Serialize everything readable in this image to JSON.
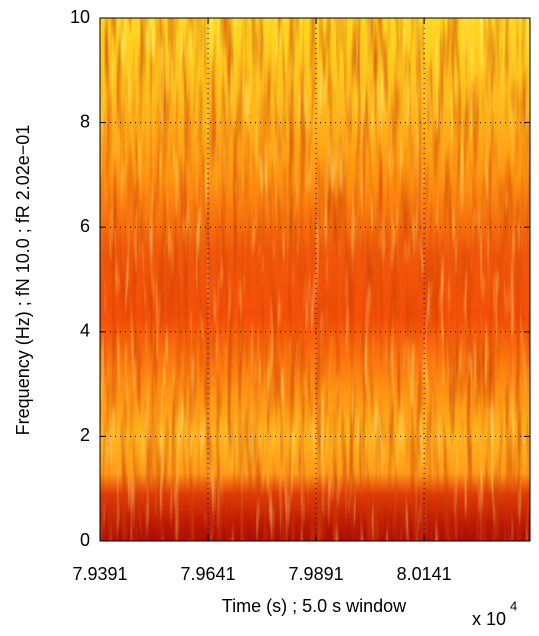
{
  "chart_data": {
    "type": "spectrogram",
    "xlabel": "Time (s) ; 5.0 s window",
    "ylabel": "Frequency (Hz) ; fN  10.0 ; fR 2.02e−01",
    "x_multiplier_base": "x 10",
    "x_multiplier_exponent": "4",
    "xlim": [
      7.9391,
      8.0386
    ],
    "xticks": [
      7.9391,
      7.9641,
      7.9891,
      8.0141
    ],
    "ylim": [
      0,
      10
    ],
    "yticks": [
      0,
      2,
      4,
      6,
      8,
      10
    ],
    "grid": true
  }
}
